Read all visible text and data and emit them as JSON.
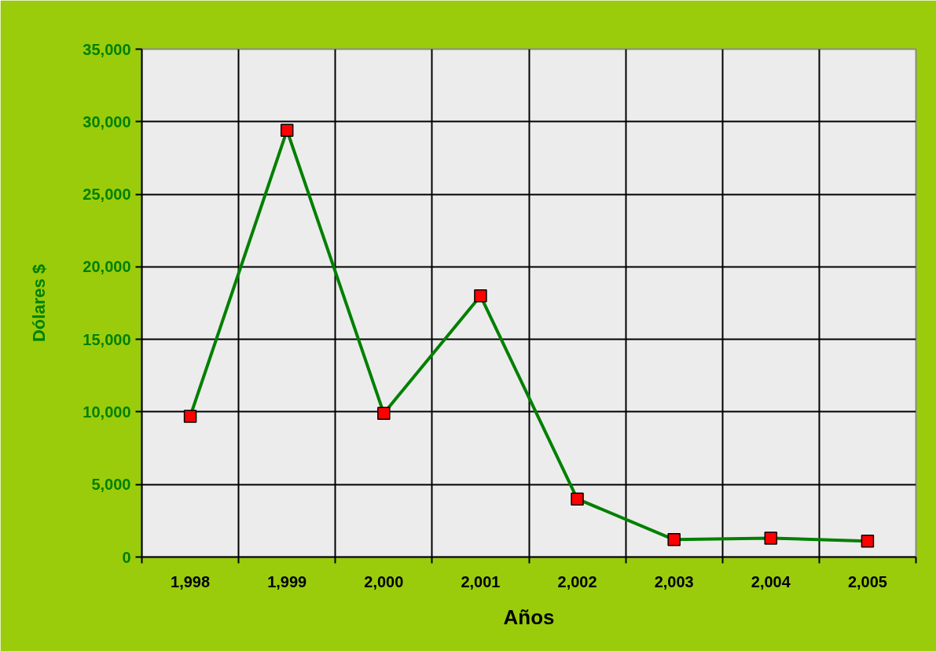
{
  "chart_data": {
    "type": "line",
    "xlabel": "Años",
    "ylabel": "Dólares $",
    "categories": [
      "1,998",
      "1,999",
      "2,000",
      "2,001",
      "2,002",
      "2,003",
      "2,004",
      "2,005"
    ],
    "series": [
      {
        "color": "#008000",
        "colors": [
          "#ff0000",
          "#ff0000",
          "#ff0000",
          "#ff0000",
          "#ff0000",
          "#ff0000",
          "#ff0000",
          "#ff0000"
        ],
        "values": [
          9700,
          29400,
          9900,
          18000,
          4000,
          1200,
          1300,
          1100
        ]
      }
    ],
    "ylim": [
      0,
      35000
    ],
    "yticks": [
      {
        "value": 0,
        "label": "0"
      },
      {
        "value": 5000,
        "label": "5,000"
      },
      {
        "value": 10000,
        "label": "10,000"
      },
      {
        "value": 15000,
        "label": "15,000"
      },
      {
        "value": 20000,
        "label": "20,000"
      },
      {
        "value": 25000,
        "label": "25,000"
      },
      {
        "value": 30000,
        "label": "30,000"
      },
      {
        "value": 35000,
        "label": "35,000"
      }
    ],
    "grid": true,
    "marker": "square",
    "line_style": "solid"
  }
}
